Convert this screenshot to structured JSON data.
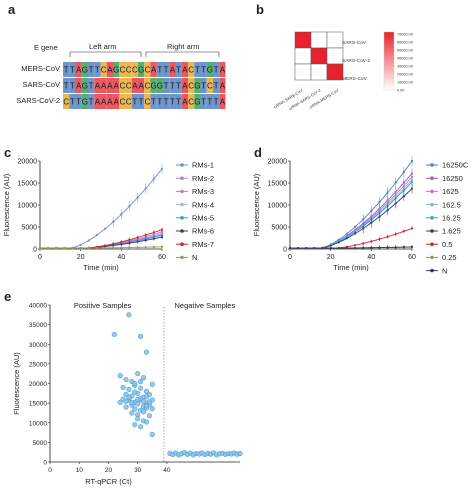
{
  "panel_labels": [
    "a",
    "b",
    "c",
    "d",
    "e"
  ],
  "panel_a": {
    "row_header": "E gene",
    "left_arm": "Left arm",
    "right_arm": "Right arm",
    "rows": [
      {
        "name": "MERS-CoV",
        "seq": "TTAGTTCAGCCCGCATTATACTTGTA"
      },
      {
        "name": "SARS-CoV",
        "seq": "TTAGTAAAACCAACGGTTTACGTCTA"
      },
      {
        "name": "SARS-CoV-2",
        "seq": "CTTGTAAAACCTTCTTTTTACGTTTA"
      }
    ],
    "base_colors": {
      "A": "#e8414b",
      "T": "#5a86c5",
      "C": "#e8ad3e",
      "G": "#41a35e"
    }
  },
  "panel_b": {
    "rows": [
      "SARS-CoV",
      "SARS-CoV-2",
      "MERS-CoV"
    ],
    "cols": [
      "crRNA-SARS-CoV",
      "crRNA-SARS-CoV-2",
      "crRNA-MERS-CoV"
    ],
    "matrix": [
      [
        1,
        0,
        0
      ],
      [
        0,
        1,
        0
      ],
      [
        0,
        0,
        1
      ]
    ],
    "scale_ticks": [
      "70000.00",
      "60000.00",
      "50000.00",
      "40000.00",
      "30000.00",
      "20000.00",
      "10000.00",
      "0.00"
    ],
    "high_color": "#e8222a",
    "low_color": "#ffffff"
  },
  "chart_data": [
    {
      "panel": "c",
      "type": "line",
      "xlabel": "Time (min)",
      "ylabel": "Fluorescence (AU)",
      "xlim": [
        0,
        60
      ],
      "ylim": [
        0,
        20000
      ],
      "x_ticks": [
        "0",
        "20",
        "40",
        "60"
      ],
      "y_ticks": [
        "0",
        "5000",
        "10000",
        "15000",
        "20000"
      ],
      "legend_position": "right",
      "series": [
        {
          "name": "RMs-1",
          "color": "#6b8fd6",
          "final": 18000
        },
        {
          "name": "RMs-2",
          "color": "#b284d8",
          "final": 3300
        },
        {
          "name": "RMs-3",
          "color": "#d671c4",
          "final": 3700
        },
        {
          "name": "RMs-4",
          "color": "#9fbde0",
          "final": 2800
        },
        {
          "name": "RMs-5",
          "color": "#2f9fd8",
          "final": 3000
        },
        {
          "name": "RMs-6",
          "color": "#3c3b6e",
          "final": 2500
        },
        {
          "name": "RMs-7",
          "color": "#d6272f",
          "final": 4200
        },
        {
          "name": "N",
          "color": "#8fa34a",
          "final": 300
        }
      ]
    },
    {
      "panel": "d",
      "type": "line",
      "xlabel": "Time (min)",
      "ylabel": "Fluorescence (AU)",
      "xlim": [
        0,
        60
      ],
      "ylim": [
        0,
        20000
      ],
      "x_ticks": [
        "0",
        "20",
        "40",
        "60"
      ],
      "y_ticks": [
        "0",
        "5000",
        "10000",
        "15000",
        "20000"
      ],
      "legend_position": "right",
      "series": [
        {
          "name": "16250C",
          "color": "#4f7fd0",
          "final": 19800
        },
        {
          "name": "16250",
          "color": "#8e63c9",
          "final": 17000
        },
        {
          "name": "1625",
          "color": "#d670c2",
          "final": 16200
        },
        {
          "name": "162.5",
          "color": "#86b6e6",
          "final": 15500
        },
        {
          "name": "16.25",
          "color": "#27a6d8",
          "final": 15000
        },
        {
          "name": "1.625",
          "color": "#3c3b6e",
          "final": 13500
        },
        {
          "name": "0.5",
          "color": "#d6272f",
          "final": 4500
        },
        {
          "name": "0.25",
          "color": "#8aa14a",
          "final": 300
        },
        {
          "name": "N",
          "color": "#2b3a67",
          "final": 250
        }
      ]
    },
    {
      "panel": "e",
      "type": "scatter",
      "xlabel": "RT-qPCR (Ct)",
      "ylabel": "Fluorescence (AU)",
      "ylim": [
        0,
        40000
      ],
      "y_ticks": [
        "0",
        "5000",
        "10000",
        "15000",
        "20000",
        "25000",
        "30000",
        "35000",
        "40000"
      ],
      "x_ticks": [
        "0",
        "10",
        "20",
        "30",
        "40"
      ],
      "xlim": [
        0,
        40
      ],
      "divider_x": 40,
      "groups": [
        {
          "name": "Positive Samples",
          "color": "#3d9bd4"
        },
        {
          "name": "Negative Samples",
          "color": "#3d9bd4"
        }
      ],
      "positive": [
        [
          22,
          32500
        ],
        [
          27,
          37500
        ],
        [
          31,
          32000
        ],
        [
          33,
          28000
        ],
        [
          24,
          22000
        ],
        [
          26,
          21000
        ],
        [
          28,
          20500
        ],
        [
          30,
          22500
        ],
        [
          32,
          21500
        ],
        [
          25,
          19000
        ],
        [
          27,
          18500
        ],
        [
          29,
          19500
        ],
        [
          31,
          18800
        ],
        [
          33,
          18000
        ],
        [
          35,
          19800
        ],
        [
          26,
          17200
        ],
        [
          28,
          16800
        ],
        [
          30,
          17500
        ],
        [
          32,
          16500
        ],
        [
          34,
          17200
        ],
        [
          27,
          15800
        ],
        [
          29,
          15200
        ],
        [
          31,
          15800
        ],
        [
          33,
          15000
        ],
        [
          25,
          16000
        ],
        [
          28,
          14500
        ],
        [
          30,
          14800
        ],
        [
          32,
          14200
        ],
        [
          34,
          14600
        ],
        [
          26,
          14000
        ],
        [
          29,
          13500
        ],
        [
          31,
          13200
        ],
        [
          33,
          13800
        ],
        [
          35,
          13600
        ],
        [
          28,
          12500
        ],
        [
          30,
          12000
        ],
        [
          32,
          12800
        ],
        [
          34,
          11800
        ],
        [
          30,
          11000
        ],
        [
          32,
          10500
        ],
        [
          29,
          9500
        ],
        [
          31,
          9000
        ],
        [
          33,
          10200
        ],
        [
          35,
          7000
        ],
        [
          27,
          16500
        ],
        [
          29,
          17800
        ],
        [
          31,
          16200
        ],
        [
          33,
          16600
        ],
        [
          35,
          15800
        ],
        [
          24,
          15200
        ],
        [
          26,
          15500
        ],
        [
          28,
          15100
        ],
        [
          30,
          15900
        ],
        [
          32,
          15400
        ],
        [
          34,
          15300
        ],
        [
          29,
          20000
        ],
        [
          31,
          20500
        ],
        [
          33,
          14300
        ]
      ],
      "negative": [
        [
          41,
          2200
        ],
        [
          42,
          1900
        ],
        [
          43,
          2300
        ],
        [
          44,
          1800
        ],
        [
          45,
          2100
        ],
        [
          46,
          2400
        ],
        [
          47,
          1950
        ],
        [
          48,
          2250
        ],
        [
          49,
          1850
        ],
        [
          50,
          2150
        ],
        [
          51,
          2050
        ],
        [
          52,
          2300
        ],
        [
          53,
          1900
        ],
        [
          54,
          2200
        ],
        [
          55,
          2000
        ],
        [
          56,
          2350
        ],
        [
          57,
          1800
        ],
        [
          58,
          2100
        ],
        [
          59,
          2250
        ],
        [
          60,
          1950
        ],
        [
          61,
          2150
        ],
        [
          62,
          2050
        ],
        [
          63,
          2300
        ],
        [
          64,
          2000
        ],
        [
          65,
          2200
        ]
      ]
    }
  ]
}
